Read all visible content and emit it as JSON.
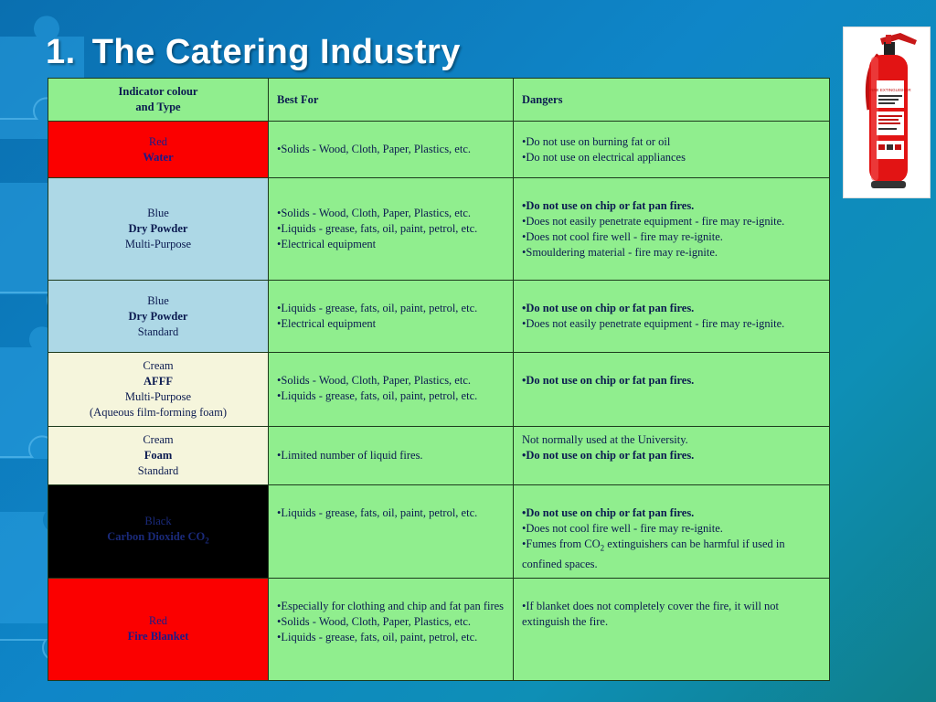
{
  "slide": {
    "title_number": "1.",
    "title": "The Catering Industry",
    "extinguisher_label": "FIRE EXTINGUISHER"
  },
  "table": {
    "headers": [
      "Indicator colour",
      "and Type",
      "Best For",
      "Dangers"
    ],
    "rows": [
      {
        "type_lines": [
          "Red",
          "Water"
        ],
        "best": [
          "•Solids - Wood, Cloth, Paper, Plastics, etc."
        ],
        "dangers": [
          "•Do not use on burning fat or oil",
          "•Do not use on electrical appliances"
        ]
      },
      {
        "type_lines": [
          "Blue",
          "Dry Powder",
          "Multi-Purpose"
        ],
        "best": [
          "•Solids - Wood, Cloth, Paper, Plastics, etc.",
          "•Liquids - grease, fats, oil, paint, petrol, etc.",
          "•Electrical equipment"
        ],
        "dangers": [
          "•Do not use on chip or fat pan fires.",
          "•Does not easily penetrate equipment - fire may re-ignite.",
          "•Does not cool fire well - fire may re-ignite.",
          "•Smouldering material - fire may re-ignite."
        ]
      },
      {
        "type_lines": [
          "Blue",
          "Dry Powder",
          "Standard"
        ],
        "best": [
          "•Liquids - grease, fats, oil, paint, petrol, etc.",
          "•Electrical equipment"
        ],
        "dangers": [
          "•Do not use on chip or fat pan fires.",
          "•Does not easily penetrate equipment - fire may re-ignite."
        ]
      },
      {
        "type_lines": [
          "Cream",
          "AFFF",
          "Multi-Purpose",
          "(Aqueous film-forming foam)"
        ],
        "best": [
          "•Solids - Wood, Cloth, Paper, Plastics, etc.",
          "•Liquids - grease, fats, oil, paint, petrol, etc."
        ],
        "dangers": [
          "•Do not use on chip or fat pan fires."
        ]
      },
      {
        "type_lines": [
          "Cream",
          "Foam",
          "Standard"
        ],
        "best": [
          "•Limited number of liquid fires."
        ],
        "dangers": [
          "Not normally used at the University.",
          "•Do not use on chip or fat pan fires."
        ]
      },
      {
        "type_lines": [
          "Black",
          "Carbon Dioxide CO",
          "2"
        ],
        "best": [
          "•Liquids - grease, fats, oil, paint, petrol, etc."
        ],
        "dangers": [
          "•Do not use on chip or fat pan fires.",
          "•Does not cool fire well - fire may re-ignite.",
          "•Fumes from CO",
          "2",
          " extinguishers can be harmful if used in confined spaces."
        ]
      },
      {
        "type_lines": [
          "Red",
          "Fire Blanket"
        ],
        "best": [
          "•Especially for clothing and chip and fat pan fires",
          "•Solids - Wood, Cloth, Paper, Plastics, etc.",
          "•Liquids - grease, fats, oil, paint, petrol, etc."
        ],
        "dangers": [
          "•If blanket does not completely cover the fire, it will not extinguish the fire."
        ]
      }
    ]
  }
}
